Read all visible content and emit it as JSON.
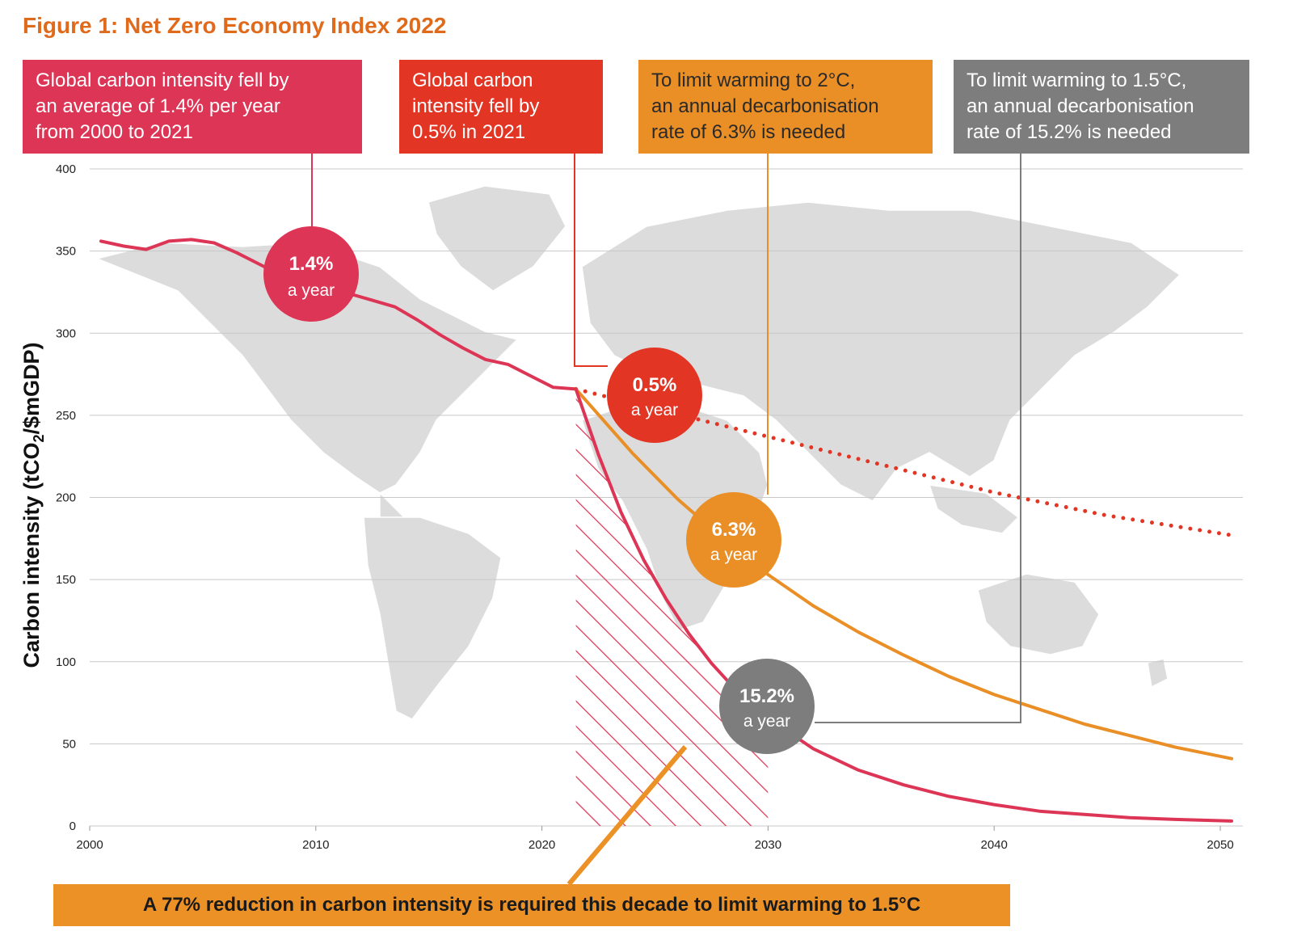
{
  "figure_title": "Figure 1: Net Zero Economy Index 2022",
  "callouts": [
    {
      "lines": [
        "Global carbon intensity fell by",
        "an average of 1.4% per year",
        "from 2000 to 2021"
      ],
      "color": "#dd3555"
    },
    {
      "lines": [
        "Global carbon",
        "intensity fell by",
        "0.5% in 2021"
      ],
      "color": "#e33524"
    },
    {
      "lines": [
        "To limit warming to 2°C,",
        "an annual decarbonisation",
        "rate of 6.3% is needed"
      ],
      "color": "#ea8e26"
    },
    {
      "lines": [
        "To limit warming to 1.5°C,",
        "an annual decarbonisation",
        "rate of 15.2% is needed"
      ],
      "color": "#7d7d7d"
    }
  ],
  "badges": [
    {
      "pct": "1.4%",
      "sub": "a year",
      "color": "#dd3555"
    },
    {
      "pct": "0.5%",
      "sub": "a year",
      "color": "#e33524"
    },
    {
      "pct": "6.3%",
      "sub": "a year",
      "color": "#ea8e26"
    },
    {
      "pct": "15.2%",
      "sub": "a year",
      "color": "#7d7d7d"
    }
  ],
  "footer": "A 77% reduction in carbon intensity is required this decade to limit warming to 1.5°C",
  "chart_data": {
    "type": "line",
    "ylabel_main": "Carbon intensity (tCO",
    "ylabel_sub": "2",
    "ylabel_end": "/$mGDP)",
    "xlim": [
      2000,
      2050
    ],
    "ylim": [
      0,
      400
    ],
    "x_ticks": [
      "2000",
      "2010",
      "2020",
      "2030",
      "2040",
      "2050"
    ],
    "y_ticks": [
      "0",
      "50",
      "100",
      "150",
      "200",
      "250",
      "300",
      "350",
      "400"
    ],
    "grid": true,
    "background": "world-map",
    "series": [
      {
        "style": "solid",
        "color": "#dd3555",
        "x": [
          2000.5,
          2001.5,
          2002.5,
          2003.5,
          2004.5,
          2005.5,
          2006.5,
          2007.5,
          2008.5,
          2009.5,
          2010.5,
          2011.5,
          2012.5,
          2013.5,
          2014.5,
          2015.5,
          2016.5,
          2017.5,
          2018.5,
          2019.5,
          2020.5,
          2021.5
        ],
        "y": [
          356,
          353,
          351,
          356,
          357,
          355,
          349,
          342,
          335,
          330,
          330,
          324,
          320,
          316,
          308,
          299,
          291,
          284,
          281,
          274,
          267,
          266
        ]
      },
      {
        "style": "dotted",
        "color": "#e33524",
        "x": [
          2021.5,
          2025,
          2030,
          2035,
          2040,
          2045,
          2050.5
        ],
        "y": [
          266,
          254,
          237,
          220,
          203,
          189,
          177
        ]
      },
      {
        "style": "solid",
        "color": "#ea8e26",
        "x": [
          2021.5,
          2024,
          2026,
          2028,
          2030,
          2032,
          2034,
          2036,
          2038,
          2040,
          2042,
          2044,
          2046,
          2048,
          2050.5
        ],
        "y": [
          266,
          227,
          199,
          175,
          153,
          134,
          118,
          104,
          91,
          80,
          71,
          62,
          55,
          48,
          41
        ]
      },
      {
        "style": "solid",
        "color": "#dd3555",
        "x": [
          2021.5,
          2022.5,
          2023.5,
          2024.5,
          2025.5,
          2026.5,
          2027.5,
          2028.5,
          2029.5,
          2030.5,
          2032,
          2034,
          2036,
          2038,
          2040,
          2042,
          2044,
          2046,
          2048,
          2050.5
        ],
        "y": [
          266,
          226,
          191,
          162,
          138,
          117,
          99,
          84,
          71,
          61,
          47,
          34,
          25,
          18,
          13,
          9,
          7,
          5,
          4,
          3
        ]
      }
    ],
    "hatched_region": {
      "x_from": 2021.5,
      "x_to": 2030,
      "color": "#dd3555"
    }
  }
}
